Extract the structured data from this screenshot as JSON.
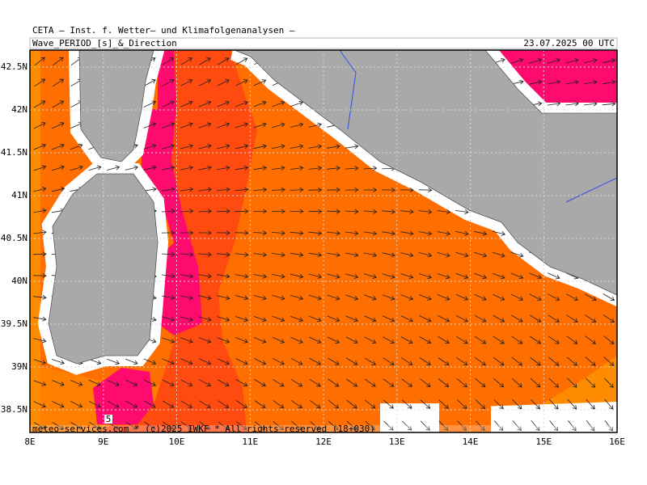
{
  "header": {
    "title": "CETA — Inst. f. Wetter— und Klimafolgenanalysen —",
    "product": "Wave_PERIOD_[s]_&_Direction",
    "valid_time": "23.07.2025 00 UTC"
  },
  "axes": {
    "latitudes": [
      "42.5N",
      "42N",
      "41.5N",
      "41N",
      "40.5N",
      "40N",
      "39.5N",
      "39N",
      "38.5N"
    ],
    "longitudes": [
      "8E",
      "9E",
      "10E",
      "11E",
      "12E",
      "13E",
      "14E",
      "15E",
      "16E"
    ]
  },
  "contour_label": "5",
  "footer": "meteo-services.com * (c)2025 IWKF * All rights reserved (18+030)"
}
